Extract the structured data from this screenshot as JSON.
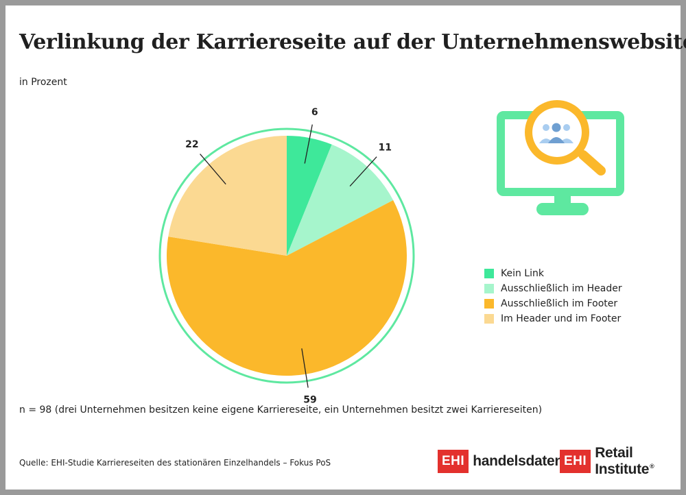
{
  "title": "Verlinkung der Karriereseite auf der Unternehmenswebsite",
  "subtitle": "in Prozent",
  "chart_data": {
    "type": "pie",
    "title": "Verlinkung der Karriereseite auf der Unternehmenswebsite",
    "subtitle": "in Prozent",
    "categories": [
      "Kein Link",
      "Ausschließlich im Header",
      "Ausschließlich im Footer",
      "Im Header und im Footer"
    ],
    "values": [
      6,
      11,
      59,
      22
    ],
    "colors": [
      "#3ee89a",
      "#a6f5cc",
      "#fbb82b",
      "#fbd992"
    ],
    "outline_color": "#5ee8a0",
    "legend_position": "right"
  },
  "note": "n = 98 (drei Unternehmen besitzen keine eigene Karriereseite, ein Unternehmen besitzt zwei Karriereseiten)",
  "source": "Quelle: EHI-Studie Karriereseiten des stationären Einzelhandels – Fokus PoS",
  "logos": {
    "ehi_mark": "EHI",
    "handelsdaten": "handelsdaten.de",
    "retail_institute": "Retail Institute",
    "registered": "®"
  },
  "icons": [
    "monitor-icon",
    "magnifier-icon",
    "people-icon"
  ],
  "colors": {
    "accent_green": "#5ee8a0",
    "accent_orange": "#fbb82b",
    "people_blue": "#a9cdf0",
    "ehi_red": "#e3312d"
  }
}
